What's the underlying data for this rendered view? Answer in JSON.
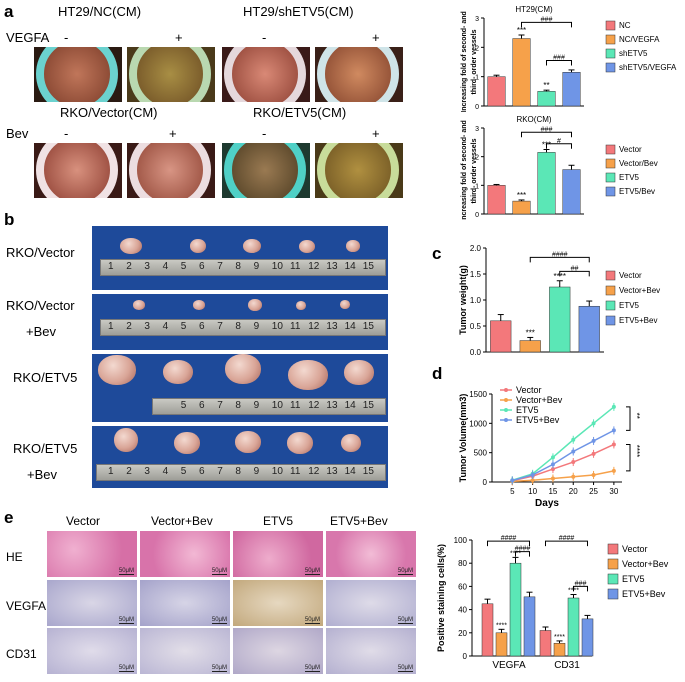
{
  "panel_labels": {
    "a": "a",
    "b": "b",
    "c": "c",
    "d": "d",
    "e": "e"
  },
  "panel_a": {
    "group1_title": "HT29/NC(CM)",
    "group2_title": "HT29/shETV5(CM)",
    "group3_title": "RKO/Vector(CM)",
    "group4_title": "RKO/ETV5(CM)",
    "row1_label": "VEGFA",
    "row2_label": "Bev",
    "minus": "-",
    "plus": "+"
  },
  "panel_b": {
    "row_labels": [
      "RKO/Vector",
      "RKO/Vector\n+Bev",
      "RKO/ETV5",
      "RKO/ETV5\n+Bev"
    ],
    "row_label_lines": [
      [
        "RKO/Vector"
      ],
      [
        "RKO/Vector",
        "+Bev"
      ],
      [
        "RKO/ETV5"
      ],
      [
        "RKO/ETV5",
        "+Bev"
      ]
    ],
    "ruler_numbers": [
      "1",
      "2",
      "3",
      "4",
      "5",
      "6",
      "7",
      "8",
      "9",
      "10",
      "11",
      "12",
      "13",
      "14",
      "15"
    ]
  },
  "panel_e": {
    "col_titles": [
      "Vector",
      "Vector+Bev",
      "ETV5",
      "ETV5+Bev"
    ],
    "row_labels": [
      "HE",
      "VEGFA",
      "CD31"
    ],
    "scale_label": "50μM"
  },
  "colors": {
    "pink": "#f3787b",
    "orange": "#f6a14a",
    "green": "#5be7b6",
    "blue": "#6f95e6"
  },
  "chart_data": [
    {
      "id": "ht29",
      "type": "bar",
      "title": "HT29(CM)",
      "ylabel": "Increasing fold of second- and\nthird- order vessels",
      "ylabel_lines": [
        "Increasing fold of second- and",
        "third- order vessels"
      ],
      "ylim": [
        0,
        3
      ],
      "yticks": [
        "0",
        "1",
        "2",
        "3"
      ],
      "categories": [
        "NC",
        "NC/VEGFA",
        "shETV5",
        "shETV5/VEGFA"
      ],
      "values": [
        1.0,
        2.3,
        0.5,
        1.15
      ],
      "errors": [
        0.05,
        0.12,
        0.04,
        0.08
      ],
      "bar_labels": [
        "",
        "***",
        "**",
        ""
      ],
      "legend": [
        "NC",
        "NC/VEGFA",
        "shETV5",
        "shETV5/VEGFA"
      ],
      "brackets": [
        {
          "from": 1,
          "to": 3,
          "label": "###",
          "level": 2.85
        },
        {
          "from": 2,
          "to": 3,
          "label": "###",
          "level": 1.55
        }
      ]
    },
    {
      "id": "rko",
      "type": "bar",
      "title": "RKO(CM)",
      "ylabel": "Increasing fold of second- and\nthird- order vessels",
      "ylabel_lines": [
        "Increasing fold of second- and",
        "third- order vessels"
      ],
      "ylim": [
        0,
        3
      ],
      "yticks": [
        "0",
        "1",
        "2",
        "3"
      ],
      "categories": [
        "Vector",
        "Vector/Bev",
        "ETV5",
        "ETV5/Bev"
      ],
      "values": [
        1.0,
        0.45,
        2.15,
        1.55
      ],
      "errors": [
        0.03,
        0.04,
        0.1,
        0.15
      ],
      "bar_labels": [
        "",
        "***",
        "***",
        ""
      ],
      "legend": [
        "Vector",
        "Vector/Bev",
        "ETV5",
        "ETV5/Bev"
      ],
      "brackets": [
        {
          "from": 1,
          "to": 3,
          "label": "###",
          "level": 2.85
        },
        {
          "from": 2,
          "to": 3,
          "label": "#",
          "level": 2.45
        }
      ]
    },
    {
      "id": "tumor_weight",
      "type": "bar",
      "ylabel": "Tumor weight(g)",
      "ylim": [
        0,
        2.0
      ],
      "yticks": [
        "0.0",
        "0.5",
        "1.0",
        "1.5",
        "2.0"
      ],
      "categories": [
        "Vector",
        "Vector+Bev",
        "ETV5",
        "ETV5+Bev"
      ],
      "values": [
        0.6,
        0.22,
        1.25,
        0.88
      ],
      "errors": [
        0.12,
        0.06,
        0.12,
        0.1
      ],
      "bar_labels": [
        "",
        "***",
        "****",
        ""
      ],
      "legend": [
        "Vector",
        "Vector+Bev",
        "ETV5",
        "ETV5+Bev"
      ],
      "brackets": [
        {
          "from": 1,
          "to": 3,
          "label": "####",
          "level": 1.82
        },
        {
          "from": 2,
          "to": 3,
          "label": "##",
          "level": 1.55
        }
      ]
    },
    {
      "id": "tumor_volume",
      "type": "line",
      "xlabel": "Days",
      "ylabel": "Tumor Volume(mm3)",
      "x": [
        5,
        10,
        15,
        20,
        25,
        30
      ],
      "xticks": [
        "5",
        "10",
        "15",
        "20",
        "25",
        "30"
      ],
      "ylim": [
        0,
        1500
      ],
      "yticks": [
        "0",
        "500",
        "1000",
        "1500"
      ],
      "legend_position": "top-left",
      "series": [
        {
          "name": "Vector",
          "values": [
            20,
            100,
            220,
            340,
            480,
            640
          ]
        },
        {
          "name": "Vector+Bev",
          "values": [
            10,
            30,
            60,
            90,
            120,
            190
          ]
        },
        {
          "name": "ETV5",
          "values": [
            30,
            140,
            420,
            720,
            1000,
            1280
          ]
        },
        {
          "name": "ETV5+Bev",
          "values": [
            25,
            120,
            300,
            520,
            700,
            880
          ]
        }
      ],
      "sig": [
        "**",
        "****"
      ]
    },
    {
      "id": "staining",
      "type": "bar",
      "ylabel": "Positive staining cells(%)",
      "ylim": [
        0,
        100
      ],
      "yticks": [
        "0",
        "20",
        "40",
        "60",
        "80",
        "100"
      ],
      "groups": [
        "VEGFA",
        "CD31"
      ],
      "series": [
        {
          "name": "Vector",
          "values": [
            45,
            22
          ],
          "errors": [
            4,
            3
          ]
        },
        {
          "name": "Vector+Bev",
          "values": [
            20,
            11
          ],
          "errors": [
            3,
            2
          ]
        },
        {
          "name": "ETV5",
          "values": [
            80,
            50
          ],
          "errors": [
            5,
            3
          ]
        },
        {
          "name": "ETV5+Bev",
          "values": [
            51,
            32
          ],
          "errors": [
            4,
            3
          ]
        }
      ],
      "bar_labels": [
        [
          "",
          "****",
          "****",
          ""
        ],
        [
          "",
          "****",
          "****",
          ""
        ]
      ],
      "brackets": [
        {
          "group": 0,
          "from": 0,
          "to": 3,
          "label": "####",
          "level": 99
        },
        {
          "group": 0,
          "from": 2,
          "to": 3,
          "label": "####",
          "level": 90
        },
        {
          "group": 1,
          "from": 0,
          "to": 3,
          "label": "####",
          "level": 99
        },
        {
          "group": 1,
          "from": 2,
          "to": 3,
          "label": "###",
          "level": 60
        }
      ]
    }
  ]
}
